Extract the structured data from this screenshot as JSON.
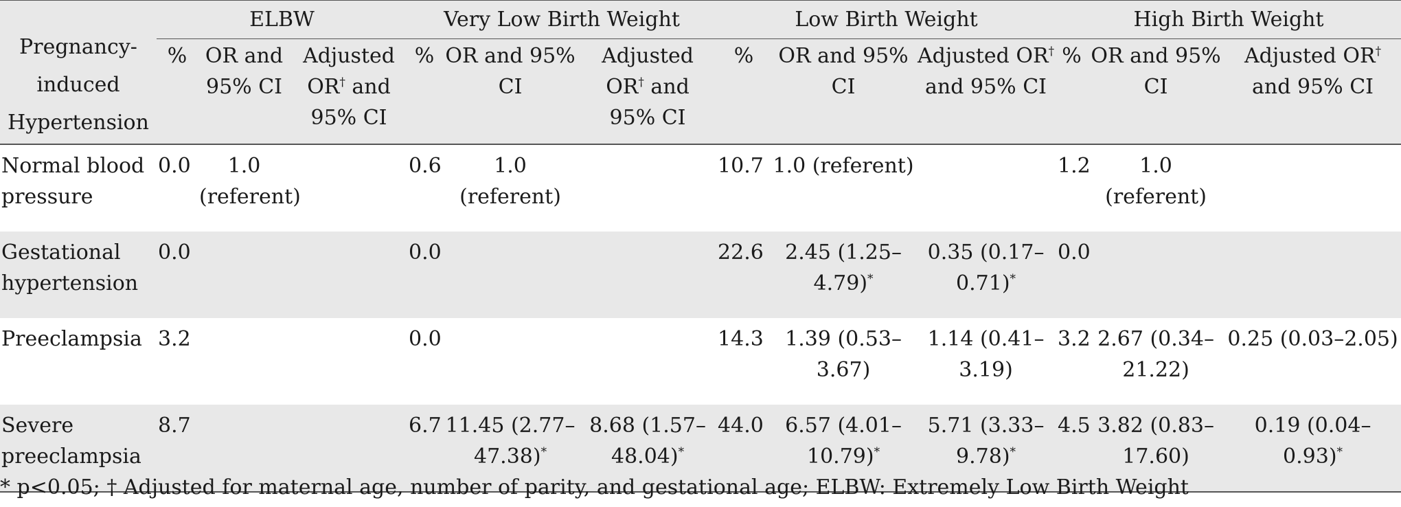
{
  "table": {
    "row_header": "Pregnancy-induced Hypertension",
    "groups": [
      "ELBW",
      "Very Low Birth Weight",
      "Low Birth Weight",
      "High Birth Weight"
    ],
    "sub_headers": {
      "pct": "%",
      "or": "OR and 95% CI",
      "adj_pre": "Adjusted OR",
      "adj_mark": "†",
      "adj_post": " and 95% CI"
    },
    "rows": [
      {
        "label": "Normal blood pressure",
        "cells": [
          {
            "pct": "0.0",
            "or": "1.0 (referent)",
            "or_mark": "",
            "adj": "",
            "adj_mark": ""
          },
          {
            "pct": "0.6",
            "or": "1.0 (referent)",
            "or_mark": "",
            "adj": "",
            "adj_mark": ""
          },
          {
            "pct": "10.7",
            "or": "1.0 (referent)",
            "or_mark": "",
            "adj": "",
            "adj_mark": ""
          },
          {
            "pct": "1.2",
            "or": "1.0 (referent)",
            "or_mark": "",
            "adj": "",
            "adj_mark": ""
          }
        ]
      },
      {
        "label": "Gestational hypertension",
        "cells": [
          {
            "pct": "0.0",
            "or": "",
            "or_mark": "",
            "adj": "",
            "adj_mark": ""
          },
          {
            "pct": "0.0",
            "or": "",
            "or_mark": "",
            "adj": "",
            "adj_mark": ""
          },
          {
            "pct": "22.6",
            "or": "2.45 (1.25–4.79)",
            "or_mark": "*",
            "adj": "0.35 (0.17–0.71)",
            "adj_mark": "*"
          },
          {
            "pct": "0.0",
            "or": "",
            "or_mark": "",
            "adj": "",
            "adj_mark": ""
          }
        ]
      },
      {
        "label": "Preeclampsia",
        "cells": [
          {
            "pct": "3.2",
            "or": "",
            "or_mark": "",
            "adj": "",
            "adj_mark": ""
          },
          {
            "pct": "0.0",
            "or": "",
            "or_mark": "",
            "adj": "",
            "adj_mark": ""
          },
          {
            "pct": "14.3",
            "or": "1.39 (0.53–3.67)",
            "or_mark": "",
            "adj": "1.14 (0.41–3.19)",
            "adj_mark": ""
          },
          {
            "pct": "3.2",
            "or": "2.67 (0.34–21.22)",
            "or_mark": "",
            "adj": "0.25 (0.03–2.05)",
            "adj_mark": ""
          }
        ]
      },
      {
        "label": "Severe preeclampsia",
        "cells": [
          {
            "pct": "8.7",
            "or": "",
            "or_mark": "",
            "adj": "",
            "adj_mark": ""
          },
          {
            "pct": "6.7",
            "or": "11.45 (2.77–47.38)",
            "or_mark": "*",
            "adj": "8.68 (1.57–48.04)",
            "adj_mark": "*"
          },
          {
            "pct": "44.0",
            "or": "6.57 (4.01–10.79)",
            "or_mark": "*",
            "adj": "5.71 (3.33–9.78)",
            "adj_mark": "*"
          },
          {
            "pct": "4.5",
            "or": "3.82 (0.83–17.60)",
            "or_mark": "",
            "adj": "0.19 (0.04–0.93)",
            "adj_mark": "*"
          }
        ]
      }
    ]
  },
  "footnote": "* p<0.05; † Adjusted for maternal age, number of parity, and gestational age; ELBW: Extremely Low Birth Weight"
}
